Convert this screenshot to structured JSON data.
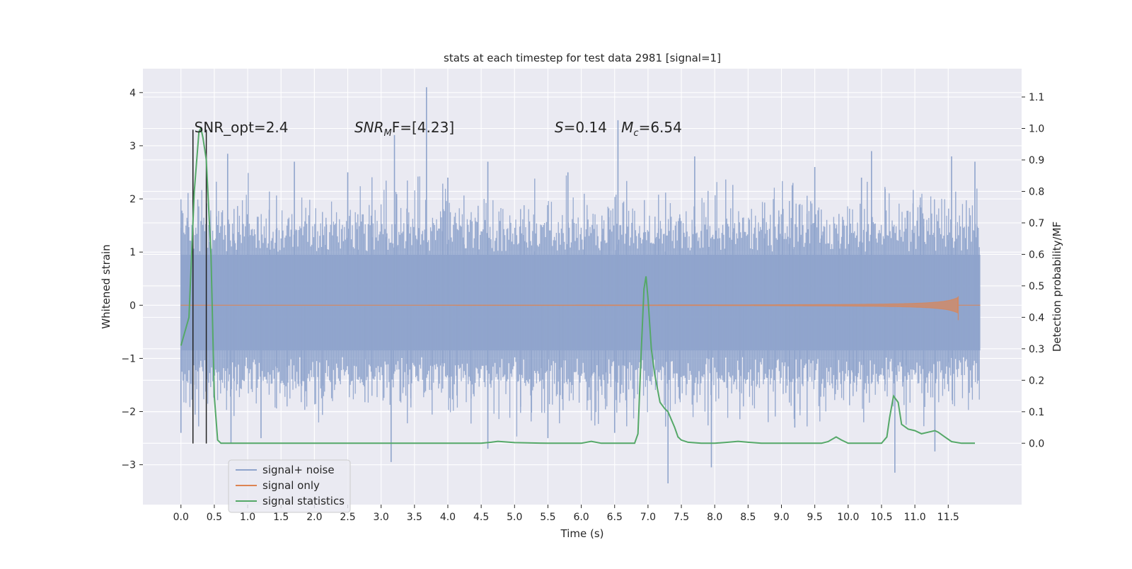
{
  "chart_data": {
    "type": "line",
    "title": "stats at each timestep for test data 2981 [signal=1]",
    "xlabel": "Time (s)",
    "ylabel_left": "Whitened strain",
    "ylabel_right": "Detection probability/MF",
    "xlim": [
      -0.57,
      12.6
    ],
    "ylim_left": [
      -3.75,
      4.45
    ],
    "ylim_right": [
      -0.195,
      1.19
    ],
    "grid": true,
    "x_ticks": [
      0.0,
      0.5,
      1.0,
      1.5,
      2.0,
      2.5,
      3.0,
      3.5,
      4.0,
      4.5,
      5.0,
      5.5,
      6.0,
      6.5,
      7.0,
      7.5,
      8.0,
      8.5,
      9.0,
      9.5,
      10.0,
      10.5,
      11.0,
      11.5
    ],
    "x_tick_labels": [
      "0.0",
      "0.5",
      "1.0",
      "1.5",
      "2.0",
      "2.5",
      "3.0",
      "3.5",
      "4.0",
      "4.5",
      "5.0",
      "5.5",
      "6.0",
      "6.5",
      "7.0",
      "7.5",
      "8.0",
      "8.5",
      "9.0",
      "9.5",
      "10.0",
      "10.5",
      "11.0",
      "11.5"
    ],
    "y_left_ticks": [
      -3,
      -2,
      -1,
      0,
      1,
      2,
      3,
      4
    ],
    "y_left_tick_labels": [
      "−3",
      "−2",
      "−1",
      "0",
      "1",
      "2",
      "3",
      "4"
    ],
    "y_right_ticks": [
      0.0,
      0.1,
      0.2,
      0.3,
      0.4,
      0.5,
      0.6,
      0.7,
      0.8,
      0.9,
      1.0,
      1.1
    ],
    "y_right_tick_labels": [
      "0.0",
      "0.1",
      "0.2",
      "0.3",
      "0.4",
      "0.5",
      "0.6",
      "0.7",
      "0.8",
      "0.9",
      "1.0",
      "1.1"
    ],
    "annotations": {
      "snr_opt": "SNR_opt=2.4",
      "snr_mf_base": "SNR",
      "snr_mf_sub": "M",
      "snr_mf_rest": "F=[4.23]",
      "s_label": "S",
      "s_value": "=0.14",
      "mc_label": "M",
      "mc_sub": "c",
      "mc_value": "=6.54"
    },
    "vertical_lines_x": [
      0.18,
      0.38
    ],
    "legend_placement": "lower-left",
    "series": [
      {
        "name": "signal+ noise",
        "axis": "left",
        "color": "#8fa4cc",
        "x_range": [
          0.0,
          11.98
        ],
        "envelope_upper": 1.55,
        "envelope_lower": -1.5,
        "core_upper": 0.95,
        "core_lower": -0.85,
        "spikes": [
          [
            3.68,
            4.1
          ],
          [
            6.55,
            3.48
          ],
          [
            3.2,
            3.2
          ],
          [
            0.18,
            3.3
          ],
          [
            0.7,
            2.85
          ],
          [
            2.5,
            2.5
          ],
          [
            4.6,
            2.7
          ],
          [
            7.7,
            2.8
          ],
          [
            11.55,
            2.8
          ],
          [
            10.35,
            2.9
          ],
          [
            11.9,
            2.7
          ],
          [
            1.7,
            2.7
          ],
          [
            4.0,
            2.4
          ],
          [
            5.8,
            2.5
          ],
          [
            9.5,
            2.6
          ],
          [
            10.2,
            2.4
          ],
          [
            7.3,
            -3.35
          ],
          [
            7.95,
            -3.05
          ],
          [
            3.15,
            -2.95
          ],
          [
            10.7,
            -3.15
          ],
          [
            11.3,
            -2.75
          ],
          [
            0.75,
            -2.6
          ],
          [
            4.6,
            -2.7
          ],
          [
            1.2,
            -2.5
          ],
          [
            5.5,
            -2.5
          ],
          [
            6.5,
            -2.4
          ],
          [
            9.2,
            -2.3
          ],
          [
            0.0,
            -2.4
          ]
        ]
      },
      {
        "name": "signal only",
        "axis": "left",
        "color": "#dd8452",
        "x_range": [
          0.0,
          11.98
        ],
        "chirp_peak_time": 11.65,
        "chirp_peak_amplitude": 0.15
      },
      {
        "name": "signal statistics",
        "axis": "right",
        "color": "#55a868",
        "x": [
          0.0,
          0.12,
          0.2,
          0.27,
          0.3,
          0.33,
          0.38,
          0.45,
          0.5,
          0.55,
          0.6,
          1.0,
          2.0,
          3.0,
          4.0,
          4.5,
          4.65,
          4.75,
          5.0,
          5.5,
          6.0,
          6.15,
          6.3,
          6.6,
          6.8,
          6.85,
          6.9,
          6.94,
          6.97,
          7.0,
          7.05,
          7.1,
          7.18,
          7.25,
          7.3,
          7.4,
          7.45,
          7.5,
          7.6,
          7.8,
          8.0,
          8.2,
          8.35,
          8.5,
          8.7,
          9.0,
          9.3,
          9.6,
          9.7,
          9.82,
          9.9,
          10.0,
          10.2,
          10.5,
          10.58,
          10.62,
          10.68,
          10.75,
          10.8,
          10.9,
          11.0,
          11.1,
          11.2,
          11.3,
          11.35,
          11.45,
          11.55,
          11.7,
          11.9
        ],
        "y": [
          0.31,
          0.4,
          0.8,
          0.99,
          1.0,
          0.97,
          0.9,
          0.6,
          0.15,
          0.01,
          0.0,
          0.0,
          0.0,
          0.0,
          0.0,
          0.0,
          0.003,
          0.006,
          0.002,
          0.0,
          0.0,
          0.006,
          0.0,
          0.0,
          0.0,
          0.03,
          0.3,
          0.49,
          0.53,
          0.46,
          0.3,
          0.22,
          0.13,
          0.11,
          0.1,
          0.05,
          0.02,
          0.01,
          0.003,
          0.0,
          0.0,
          0.003,
          0.006,
          0.003,
          0.0,
          0.0,
          0.0,
          0.0,
          0.005,
          0.02,
          0.01,
          0.0,
          0.0,
          0.0,
          0.02,
          0.08,
          0.15,
          0.13,
          0.06,
          0.045,
          0.04,
          0.03,
          0.035,
          0.04,
          0.035,
          0.02,
          0.005,
          0.0,
          0.0
        ]
      }
    ]
  }
}
